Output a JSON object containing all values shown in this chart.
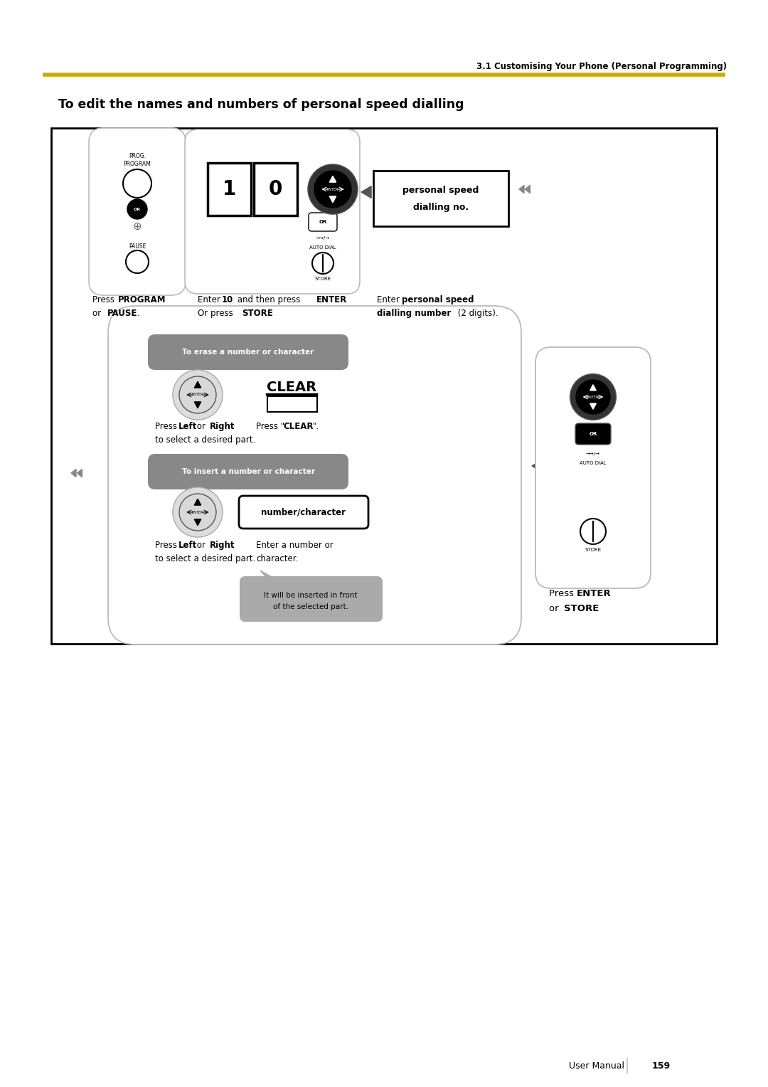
{
  "page_title": "3.1 Customising Your Phone (Personal Programming)",
  "section_title": "To edit the names and numbers of personal speed dialling",
  "gold_color": "#D4A800",
  "bg_color": "#ffffff",
  "footer_text": "User Manual",
  "footer_page": "159",
  "gray_pill": "#888888",
  "light_gray": "#cccccc",
  "bubble_gray": "#aaaaaa",
  "nav_btn_gray": "#d8d8d8",
  "bracket_gray": "#bbbbbb"
}
